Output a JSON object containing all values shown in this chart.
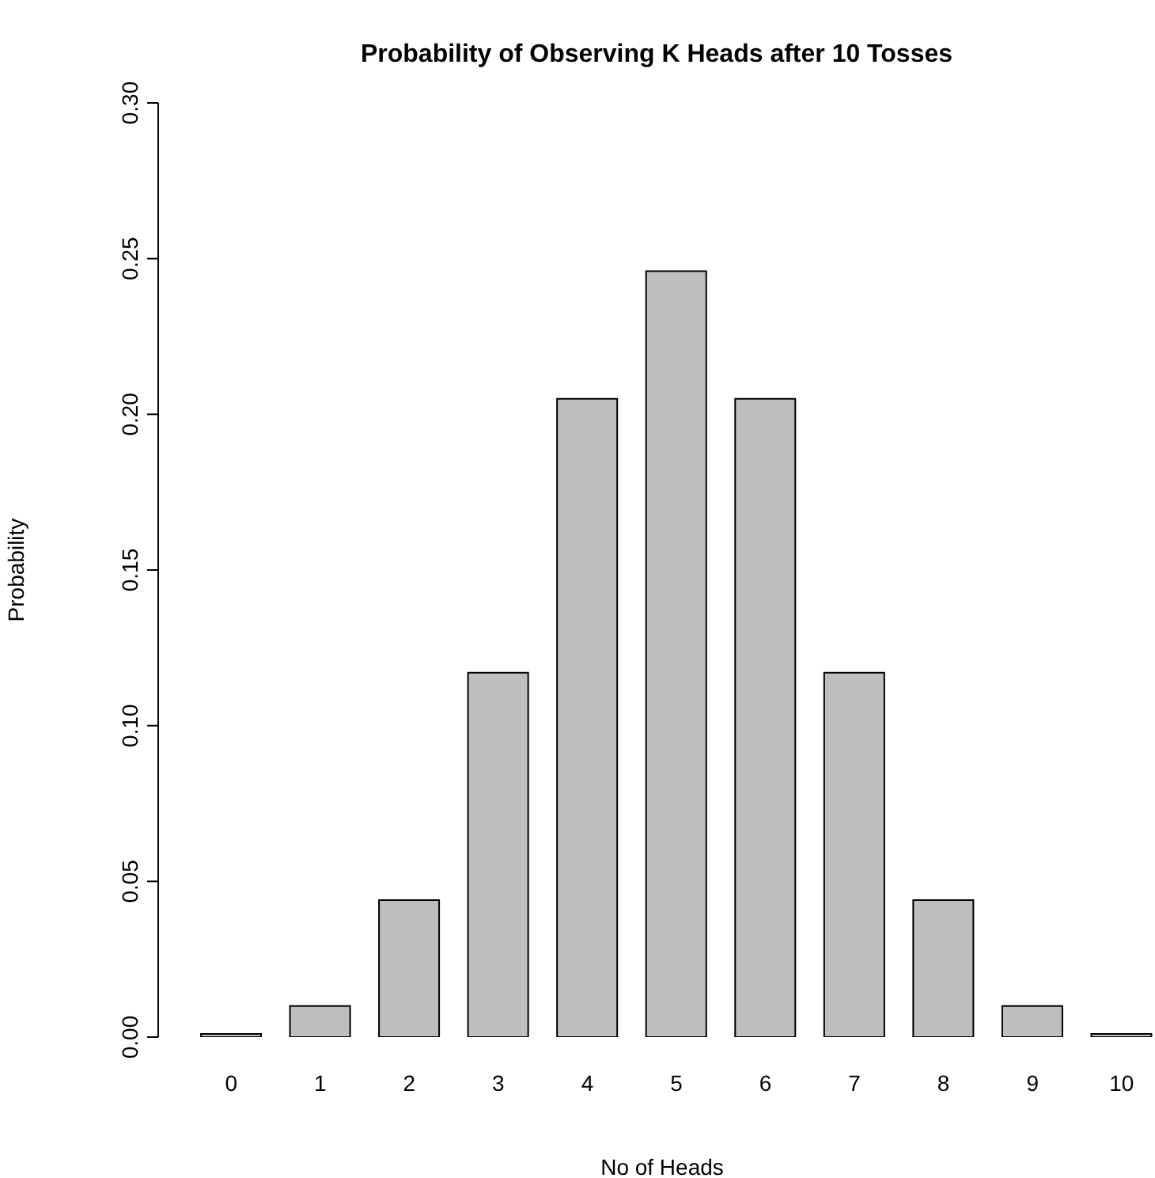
{
  "chart_data": {
    "type": "bar",
    "title": "Probability of Observing K Heads after 10 Tosses",
    "xlabel": "No of Heads",
    "ylabel": "Probability",
    "categories": [
      "0",
      "1",
      "2",
      "3",
      "4",
      "5",
      "6",
      "7",
      "8",
      "9",
      "10"
    ],
    "values": [
      0.001,
      0.01,
      0.044,
      0.117,
      0.205,
      0.246,
      0.205,
      0.117,
      0.044,
      0.01,
      0.001
    ],
    "color": "#bebebe",
    "ylim": [
      0,
      0.3
    ],
    "yticks": [
      {
        "value": 0,
        "label": "0.00"
      },
      {
        "value": 0.05,
        "label": "0.05"
      },
      {
        "value": 0.1,
        "label": "0.10"
      },
      {
        "value": 0.15,
        "label": "0.15"
      },
      {
        "value": 0.2,
        "label": "0.20"
      },
      {
        "value": 0.25,
        "label": "0.25"
      },
      {
        "value": 0.3,
        "label": "0.30"
      }
    ],
    "grid": false
  }
}
